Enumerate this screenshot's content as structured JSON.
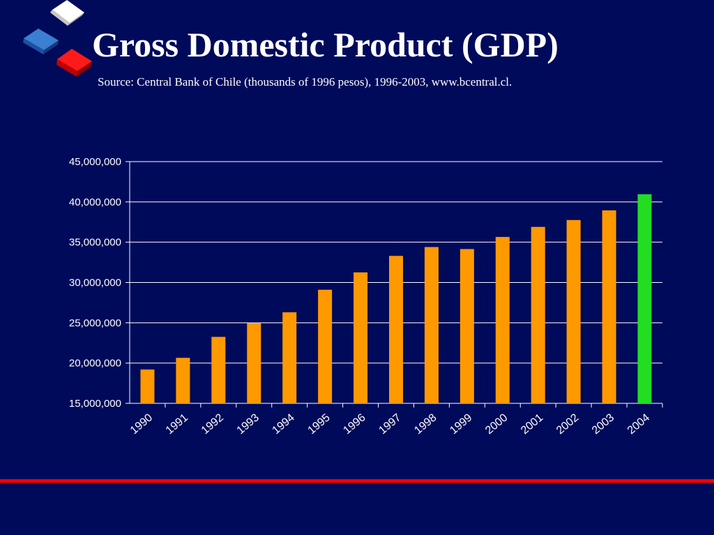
{
  "slide": {
    "title": "Gross Domestic Product (GDP)",
    "subtitle": "Source: Central Bank of Chile (thousands of 1996 pesos), 1996-2003, www.bcentral.cl."
  },
  "colors": {
    "background": "#000a5a",
    "bar": "#ff9900",
    "bar_highlight": "#22dd22",
    "rule": "#ff0000",
    "text": "#ffffff"
  },
  "logo": {
    "icon": "three-cubes-icon"
  },
  "chart_data": {
    "type": "bar",
    "categories": [
      "1990",
      "1991",
      "1992",
      "1993",
      "1994",
      "1995",
      "1996",
      "1997",
      "1998",
      "1999",
      "2000",
      "2001",
      "2002",
      "2003",
      "2004"
    ],
    "values": [
      19200000,
      20650000,
      23250000,
      24950000,
      26300000,
      29100000,
      31250000,
      33300000,
      34400000,
      34150000,
      35650000,
      36900000,
      37750000,
      38950000,
      40950000
    ],
    "highlight_category": "2004",
    "ylim": [
      15000000,
      45000000
    ],
    "yticks": [
      15000000,
      20000000,
      25000000,
      30000000,
      35000000,
      40000000,
      45000000
    ],
    "ytick_labels": [
      "15,000,000",
      "20,000,000",
      "25,000,000",
      "30,000,000",
      "35,000,000",
      "40,000,000",
      "45,000,000"
    ],
    "grid": true,
    "legend": "none"
  }
}
